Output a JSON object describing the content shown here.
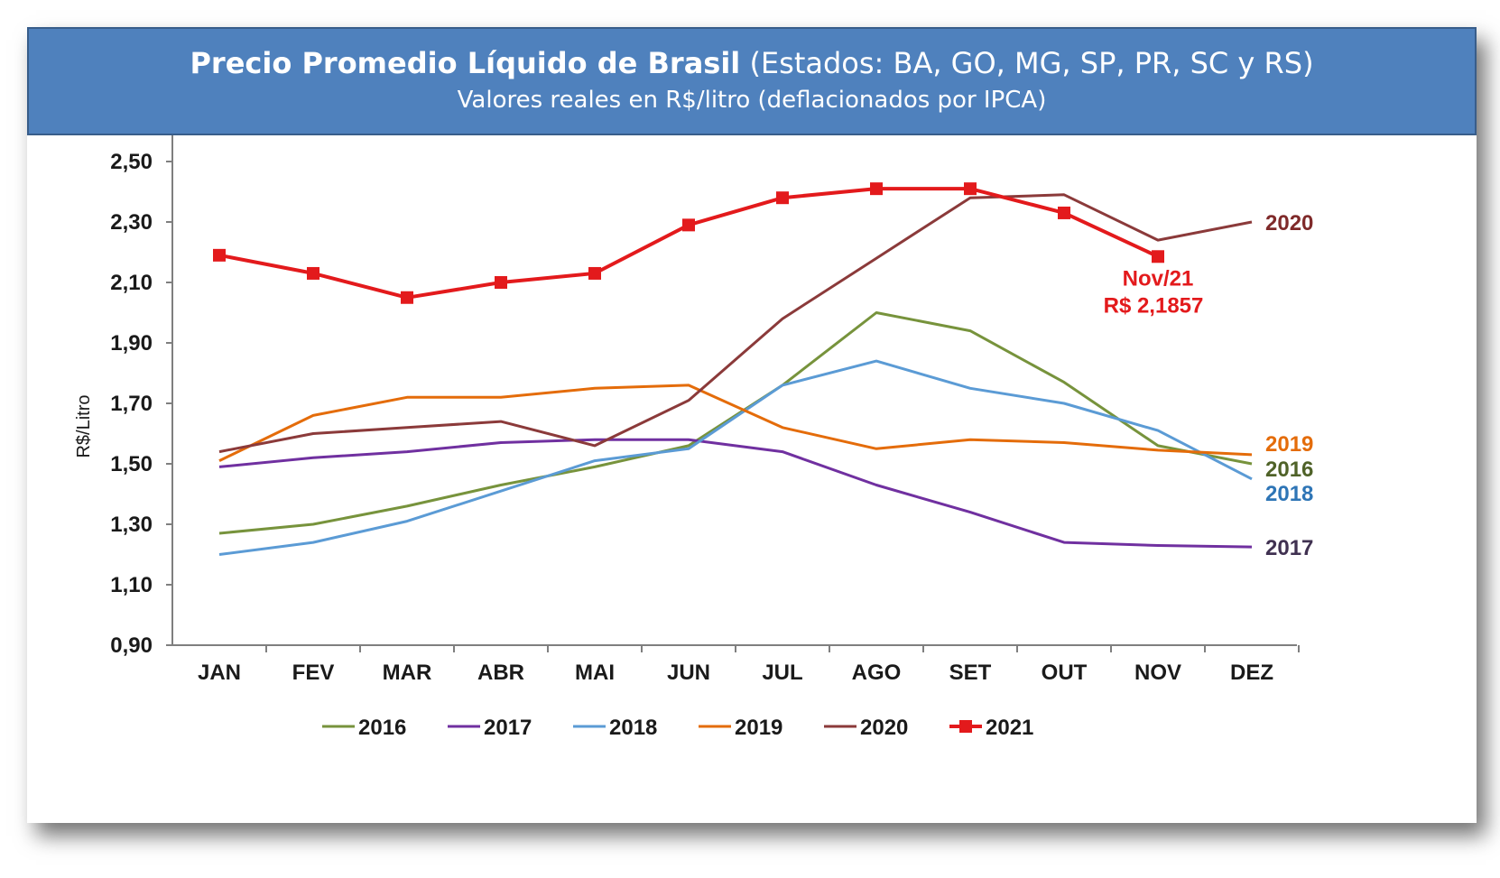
{
  "header": {
    "title_bold": "Precio Promedio Líquido de Brasil",
    "title_rest": " (Estados: BA, GO, MG, SP, PR, SC y RS)",
    "subtitle": "Valores reales en R$/litro (deflacionados por IPCA)"
  },
  "chart_data": {
    "type": "line",
    "title": "Precio Promedio Líquido de Brasil (Estados: BA, GO, MG, SP, PR, SC y RS)",
    "subtitle": "Valores reales en R$/litro (deflacionados por IPCA)",
    "xlabel": "",
    "ylabel": "R$/Litro",
    "ylim": [
      0.9,
      2.6
    ],
    "yticks": [
      "0,90",
      "1,10",
      "1,30",
      "1,50",
      "1,70",
      "1,90",
      "2,10",
      "2,30",
      "2,50"
    ],
    "categories": [
      "JAN",
      "FEV",
      "MAR",
      "ABR",
      "MAI",
      "JUN",
      "JUL",
      "AGO",
      "SET",
      "OUT",
      "NOV",
      "DEZ"
    ],
    "grid": false,
    "legend_position": "bottom",
    "series": [
      {
        "name": "2016",
        "color": "#77933c",
        "marker": "none",
        "values": [
          1.27,
          1.3,
          1.36,
          1.43,
          1.49,
          1.56,
          1.76,
          2.0,
          1.94,
          1.77,
          1.56,
          1.5
        ]
      },
      {
        "name": "2017",
        "color": "#7030a0",
        "marker": "none",
        "values": [
          1.49,
          1.52,
          1.54,
          1.57,
          1.58,
          1.58,
          1.54,
          1.43,
          1.34,
          1.24,
          1.23,
          1.225
        ]
      },
      {
        "name": "2018",
        "color": "#5b9bd5",
        "marker": "none",
        "values": [
          1.2,
          1.24,
          1.31,
          1.41,
          1.51,
          1.55,
          1.76,
          1.84,
          1.75,
          1.7,
          1.61,
          1.45
        ]
      },
      {
        "name": "2019",
        "color": "#e46c0a",
        "marker": "none",
        "values": [
          1.51,
          1.66,
          1.72,
          1.72,
          1.75,
          1.76,
          1.62,
          1.55,
          1.58,
          1.57,
          1.545,
          1.53
        ]
      },
      {
        "name": "2020",
        "color": "#8b3a3a",
        "marker": "none",
        "values": [
          1.54,
          1.6,
          1.62,
          1.64,
          1.56,
          1.71,
          1.98,
          2.18,
          2.38,
          2.39,
          2.24,
          2.3
        ]
      },
      {
        "name": "2021",
        "color": "#e31a1c",
        "marker": "square",
        "values": [
          2.19,
          2.13,
          2.05,
          2.1,
          2.13,
          2.29,
          2.38,
          2.41,
          2.41,
          2.33,
          2.1857,
          null
        ]
      }
    ],
    "end_labels": [
      {
        "series": "2020",
        "text": "2020",
        "color": "#7f2a2a"
      },
      {
        "series": "2019",
        "text": "2019",
        "color": "#e46c0a"
      },
      {
        "series": "2016",
        "text": "2016",
        "color": "#4f6228"
      },
      {
        "series": "2018",
        "text": "2018",
        "color": "#2e75b6"
      },
      {
        "series": "2017",
        "text": "2017",
        "color": "#403151"
      }
    ],
    "annotation": {
      "line1": "Nov/21",
      "line2": "R$ 2,1857",
      "color": "#e31a1c"
    }
  }
}
